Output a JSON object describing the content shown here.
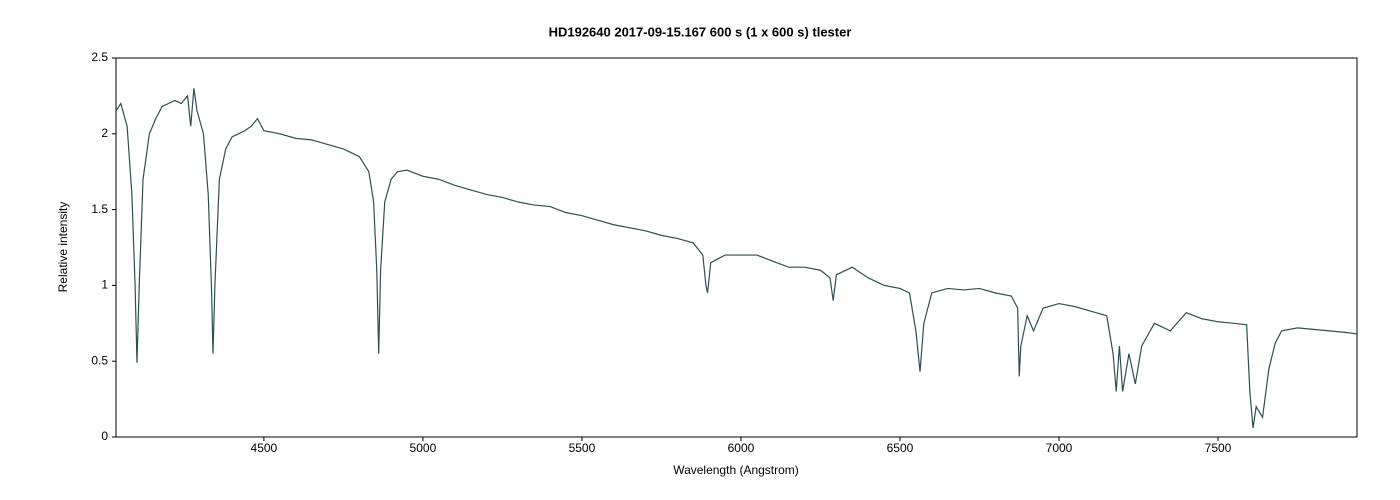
{
  "chart_data": {
    "type": "line",
    "title": "HD192640  2017-09-15.167  600 s (1 x 600 s)  tlester",
    "x_label": "Wavelength (Angstrom)",
    "y_label": "Relative intensity",
    "xlim": [
      4035,
      7937
    ],
    "ylim": [
      0,
      2.5
    ],
    "xticks": [
      4500,
      5000,
      5500,
      6000,
      6500,
      7000,
      7500
    ],
    "yticks": [
      0,
      0.5,
      1,
      1.5,
      2,
      2.5
    ],
    "grid": false,
    "series": [
      {
        "color": "#2f4f4f",
        "x": [
          4035,
          4050,
          4070,
          4085,
          4095,
          4101,
          4108,
          4120,
          4140,
          4160,
          4180,
          4200,
          4220,
          4240,
          4260,
          4270,
          4280,
          4290,
          4310,
          4325,
          4335,
          4340,
          4346,
          4360,
          4380,
          4400,
          4420,
          4440,
          4460,
          4480,
          4500,
          4550,
          4600,
          4650,
          4700,
          4750,
          4800,
          4830,
          4845,
          4855,
          4861,
          4867,
          4880,
          4900,
          4920,
          4950,
          5000,
          5050,
          5100,
          5150,
          5200,
          5250,
          5300,
          5350,
          5400,
          5450,
          5500,
          5550,
          5600,
          5650,
          5700,
          5750,
          5800,
          5850,
          5880,
          5890,
          5895,
          5905,
          5950,
          6000,
          6050,
          6100,
          6150,
          6200,
          6250,
          6280,
          6290,
          6300,
          6350,
          6400,
          6450,
          6500,
          6530,
          6550,
          6563,
          6575,
          6600,
          6650,
          6700,
          6750,
          6800,
          6850,
          6870,
          6875,
          6880,
          6900,
          6920,
          6950,
          7000,
          7050,
          7100,
          7150,
          7170,
          7180,
          7190,
          7200,
          7220,
          7240,
          7260,
          7300,
          7350,
          7400,
          7450,
          7500,
          7550,
          7590,
          7600,
          7610,
          7620,
          7640,
          7660,
          7680,
          7700,
          7750,
          7800,
          7850,
          7900,
          7937
        ],
        "values": [
          2.15,
          2.2,
          2.05,
          1.6,
          1.0,
          0.49,
          1.0,
          1.7,
          2.0,
          2.1,
          2.18,
          2.2,
          2.22,
          2.2,
          2.25,
          2.05,
          2.3,
          2.15,
          2.0,
          1.6,
          1.0,
          0.55,
          1.0,
          1.7,
          1.9,
          1.98,
          2.0,
          2.02,
          2.05,
          2.1,
          2.02,
          2.0,
          1.97,
          1.96,
          1.93,
          1.9,
          1.85,
          1.75,
          1.55,
          1.1,
          0.55,
          1.1,
          1.55,
          1.7,
          1.75,
          1.76,
          1.72,
          1.7,
          1.66,
          1.63,
          1.6,
          1.58,
          1.55,
          1.53,
          1.52,
          1.48,
          1.46,
          1.43,
          1.4,
          1.38,
          1.36,
          1.33,
          1.31,
          1.28,
          1.2,
          1.0,
          0.95,
          1.15,
          1.2,
          1.2,
          1.2,
          1.16,
          1.12,
          1.12,
          1.1,
          1.05,
          0.9,
          1.07,
          1.12,
          1.05,
          1.0,
          0.98,
          0.95,
          0.7,
          0.43,
          0.75,
          0.95,
          0.98,
          0.97,
          0.98,
          0.95,
          0.93,
          0.85,
          0.4,
          0.6,
          0.8,
          0.7,
          0.85,
          0.88,
          0.86,
          0.83,
          0.8,
          0.55,
          0.3,
          0.6,
          0.3,
          0.55,
          0.35,
          0.6,
          0.75,
          0.7,
          0.82,
          0.78,
          0.76,
          0.75,
          0.74,
          0.3,
          0.06,
          0.2,
          0.13,
          0.45,
          0.62,
          0.7,
          0.72,
          0.71,
          0.7,
          0.69,
          0.68
        ]
      }
    ]
  }
}
